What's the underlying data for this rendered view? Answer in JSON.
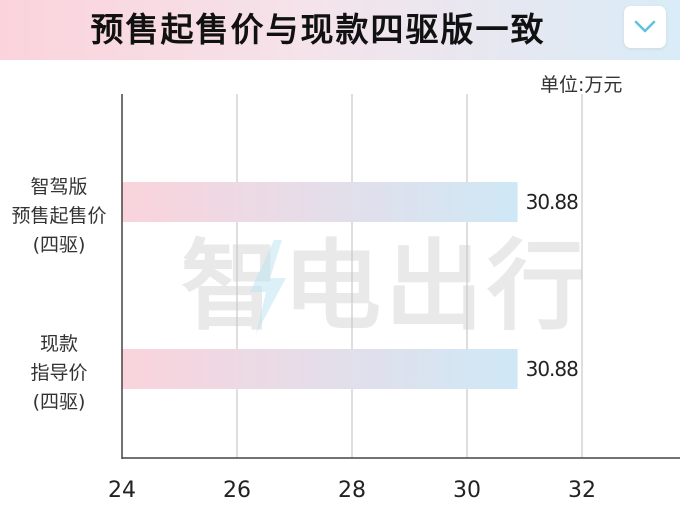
{
  "title": "预售起售价与现款四驱版一致",
  "unit": "单位:万元",
  "watermark": "智电出行",
  "icons": {
    "dropdown": "chevron-down-icon",
    "logo_bolt": "lightning-bolt-icon"
  },
  "colors": {
    "bar_start": "#fad3dc",
    "bar_end": "#cfe8f6",
    "header_start": "#fbd3dc",
    "header_end": "#d9ecf7",
    "chevron": "#5fc3df",
    "watermark": "#c9c9c9"
  },
  "chart_data": {
    "type": "bar",
    "orientation": "horizontal",
    "categories": [
      [
        "智驾版",
        "预售起售价",
        "(四驱)"
      ],
      [
        "现款",
        "指导价",
        "(四驱)"
      ]
    ],
    "values": [
      30.88,
      30.88
    ],
    "data_labels": [
      "30.88",
      "30.88"
    ],
    "xlim": [
      24,
      33.2
    ],
    "xticks": [
      24,
      26,
      28,
      30,
      32
    ],
    "xtick_labels": [
      "24",
      "26",
      "28",
      "30",
      "32"
    ],
    "grid": "vertical",
    "legend": "none"
  }
}
